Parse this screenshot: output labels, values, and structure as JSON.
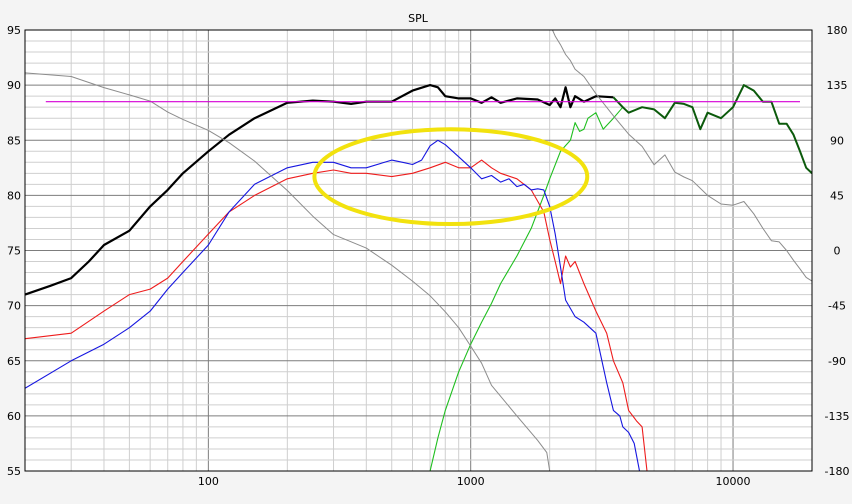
{
  "chart_data": {
    "type": "line",
    "title": "SPL",
    "xscale": "log",
    "xlim": [
      20,
      20000
    ],
    "ylim": [
      55,
      95
    ],
    "y2lim": [
      -180,
      180
    ],
    "x_tick_labels": [
      {
        "value": 100,
        "label": "100"
      },
      {
        "value": 1000,
        "label": "1000"
      },
      {
        "value": 10000,
        "label": "10000"
      }
    ],
    "y_ticks": [
      55,
      60,
      65,
      70,
      75,
      80,
      85,
      90,
      95
    ],
    "y2_ticks": [
      -180,
      -135,
      -90,
      -45,
      0,
      45,
      90,
      135,
      180
    ],
    "grid": true,
    "colors": {
      "background": "#ffffff",
      "grid_major": "#7d7d7d",
      "grid_minor": "#cfcfcf",
      "highlight_ellipse": "#f2e20e"
    },
    "series": [
      {
        "key": "black_spl",
        "color": "#000000",
        "width": 2.2,
        "x": [
          20,
          25,
          30,
          35,
          40,
          50,
          60,
          70,
          80,
          100,
          120,
          150,
          200,
          250,
          300,
          350,
          400,
          500,
          600,
          700,
          750,
          800,
          900,
          1000,
          1100,
          1200,
          1300,
          1500,
          1800,
          2000,
          2100,
          2200,
          2300,
          2400,
          2500,
          2700,
          3000,
          3500
        ],
        "y": [
          71.0,
          71.8,
          72.5,
          74.0,
          75.5,
          76.8,
          79.0,
          80.5,
          82.0,
          84.0,
          85.5,
          87.0,
          88.4,
          88.6,
          88.5,
          88.3,
          88.5,
          88.5,
          89.5,
          90.0,
          89.8,
          89.0,
          88.8,
          88.8,
          88.4,
          88.9,
          88.4,
          88.8,
          88.7,
          88.2,
          88.8,
          88.0,
          89.8,
          88.0,
          89.0,
          88.5,
          89.0,
          88.9
        ]
      },
      {
        "key": "green_hf",
        "color": "#1fbf1f",
        "width": 1.1,
        "x": [
          700,
          750,
          800,
          900,
          1000,
          1100,
          1200,
          1300,
          1500,
          1700,
          1900,
          2000,
          2200,
          2400,
          2500,
          2600,
          2700,
          2800,
          3000,
          3200,
          3500,
          3800,
          4000,
          4500,
          5000,
          5500,
          6000,
          6500,
          7000,
          7500,
          8000,
          9000,
          10000,
          11000,
          12000,
          13000,
          14000,
          15000,
          16000,
          17000,
          18000,
          19000,
          20000
        ],
        "y": [
          55.0,
          58.0,
          60.5,
          64.0,
          66.5,
          68.5,
          70.2,
          72.0,
          74.5,
          77.0,
          80.0,
          81.5,
          84.0,
          85.0,
          86.6,
          85.8,
          86.0,
          87.0,
          87.5,
          86.0,
          87.0,
          88.0,
          87.5,
          88.0,
          87.8,
          87.0,
          88.4,
          88.3,
          88.0,
          86.0,
          87.5,
          87.0,
          88.0,
          90.0,
          89.5,
          88.5,
          88.5,
          86.5,
          86.5,
          85.5,
          84.0,
          82.5,
          82.0
        ]
      },
      {
        "key": "dark_green_overlay",
        "color": "#0b5a0b",
        "width": 2.0,
        "x": [
          3500,
          3800,
          4000,
          4500,
          5000,
          5500,
          6000,
          6500,
          7000,
          7500,
          8000,
          9000,
          10000,
          11000,
          12000,
          13000,
          14000,
          15000,
          16000,
          17000,
          18000,
          19000,
          20000
        ],
        "y": [
          88.9,
          88.0,
          87.5,
          88.0,
          87.8,
          87.0,
          88.4,
          88.3,
          88.0,
          86.0,
          87.5,
          87.0,
          88.0,
          90.0,
          89.5,
          88.5,
          88.5,
          86.5,
          86.5,
          85.5,
          84.0,
          82.5,
          82.0
        ]
      },
      {
        "key": "red_response",
        "color": "#ee1c1c",
        "width": 1.1,
        "x": [
          20,
          30,
          40,
          50,
          60,
          70,
          80,
          100,
          120,
          150,
          200,
          250,
          300,
          350,
          400,
          500,
          600,
          700,
          800,
          900,
          1000,
          1100,
          1200,
          1300,
          1500,
          1700,
          1900,
          2000,
          2100,
          2200,
          2300,
          2400,
          2500,
          2700,
          3000,
          3300,
          3500,
          3800,
          4000,
          4300,
          4500,
          4700
        ],
        "y": [
          67.0,
          67.5,
          69.5,
          71.0,
          71.5,
          72.5,
          74.0,
          76.5,
          78.5,
          80.0,
          81.5,
          82.0,
          82.3,
          82.0,
          82.0,
          81.7,
          82.0,
          82.5,
          83.0,
          82.5,
          82.5,
          83.2,
          82.5,
          82.0,
          81.5,
          80.5,
          78.5,
          76.0,
          74.0,
          72.0,
          74.5,
          73.5,
          74.0,
          72.0,
          69.5,
          67.5,
          65.0,
          63.0,
          60.5,
          59.5,
          59.0,
          55.0
        ]
      },
      {
        "key": "blue_response",
        "color": "#1616e0",
        "width": 1.1,
        "x": [
          20,
          30,
          40,
          50,
          60,
          70,
          80,
          100,
          120,
          150,
          200,
          250,
          300,
          350,
          400,
          500,
          550,
          600,
          650,
          700,
          750,
          800,
          900,
          1000,
          1100,
          1200,
          1300,
          1400,
          1500,
          1600,
          1700,
          1800,
          1900,
          2000,
          2100,
          2200,
          2300,
          2500,
          2700,
          3000,
          3300,
          3500,
          3700,
          3800,
          4000,
          4200,
          4400
        ],
        "y": [
          62.5,
          65.0,
          66.5,
          68.0,
          69.5,
          71.5,
          73.0,
          75.5,
          78.5,
          81.0,
          82.5,
          83.0,
          83.0,
          82.5,
          82.5,
          83.2,
          83.0,
          82.8,
          83.2,
          84.5,
          85.0,
          84.6,
          83.5,
          82.5,
          81.5,
          81.8,
          81.2,
          81.5,
          80.8,
          81.0,
          80.5,
          80.6,
          80.5,
          79.0,
          76.5,
          73.5,
          70.5,
          69.0,
          68.5,
          67.5,
          63.0,
          60.5,
          60.0,
          59.0,
          58.5,
          57.5,
          55.0
        ]
      },
      {
        "key": "gray_phase",
        "color": "#8c8c8c",
        "width": 1.0,
        "axis": "right",
        "x": [
          20,
          30,
          40,
          50,
          60,
          70,
          80,
          100,
          120,
          150,
          200,
          250,
          300,
          400,
          500,
          600,
          700,
          800,
          900,
          1000,
          1100,
          1200,
          1500,
          1800,
          1950,
          2000,
          2050,
          2100,
          2200,
          2300,
          2400,
          2500,
          2700,
          3000,
          3500,
          4000,
          4500,
          5000,
          5500,
          6000,
          6500,
          7000,
          8000,
          9000,
          10000,
          11000,
          12000,
          13000,
          14000,
          15000,
          16000,
          17000,
          18000,
          19000,
          20000
        ],
        "y": [
          145,
          142,
          133,
          127,
          122,
          113,
          107,
          98,
          88,
          73,
          49,
          28,
          13,
          2,
          -12,
          -25,
          -37,
          -50,
          -63,
          -78,
          -92,
          -110,
          -135,
          -155,
          -165,
          -180,
          180,
          175,
          168,
          160,
          155,
          148,
          142,
          128,
          110,
          95,
          85,
          70,
          78,
          64,
          60,
          57,
          45,
          38,
          37,
          40,
          30,
          18,
          8,
          7,
          0,
          -8,
          -15,
          -22,
          -25
        ]
      },
      {
        "key": "magenta_reference",
        "color": "#d400d4",
        "width": 1.1,
        "x": [
          24,
          18000
        ],
        "y": [
          88.5,
          88.5
        ]
      }
    ],
    "annotation": {
      "type": "ellipse",
      "center_x": 840,
      "center_y": 81.7,
      "rx_decades": 0.52,
      "ry_db": 4.3
    }
  }
}
